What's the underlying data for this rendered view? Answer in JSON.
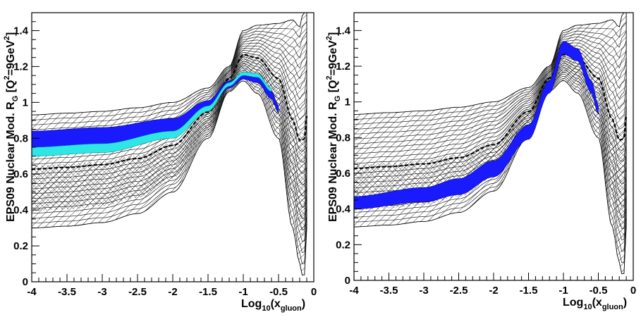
{
  "chart_data": [
    {
      "type": "line",
      "panel": "left",
      "title": "",
      "xlabel": "Log10(xgluon)",
      "xlabel_parts": {
        "pre": "Log",
        "sub1": "10",
        "mid": "(x",
        "sub2": "gluon",
        "post": ")"
      },
      "ylabel": "EPS09 Nuclear Mod. RG [Q2=9GeV2]",
      "ylabel_parts": {
        "pre": "EPS09 Nuclear Mod. R",
        "sub1": "G",
        "mid1": " [Q",
        "sup1": "2",
        "mid2": "=9GeV",
        "sup2": "2",
        "post": "]"
      },
      "xlim": [
        -4,
        0
      ],
      "ylim": [
        0,
        1.5
      ],
      "xticks": [
        "-4",
        "-3.5",
        "-3",
        "-2.5",
        "-2",
        "-1.5",
        "-1",
        "-0.5",
        "0"
      ],
      "yticks": [
        "0",
        "0.2",
        "0.4",
        "0.6",
        "0.8",
        "1",
        "1.2",
        "1.4"
      ],
      "bands": [
        {
          "name": "EPS09 error envelope (hatched)",
          "x": [
            -4,
            -3.5,
            -3,
            -2.5,
            -2,
            -1.5,
            -1.2,
            -1,
            -0.8,
            -0.5,
            -0.3,
            -0.2,
            -0.15,
            -0.12,
            -0.1
          ],
          "upper": [
            0.93,
            0.94,
            0.95,
            0.97,
            1.0,
            1.08,
            1.2,
            1.4,
            1.43,
            1.44,
            1.46,
            1.42,
            1.5,
            1.5,
            1.5
          ],
          "lower": [
            0.3,
            0.31,
            0.33,
            0.38,
            0.5,
            0.8,
            1.06,
            1.12,
            1.05,
            0.8,
            0.3,
            0.1,
            0.02,
            0.05,
            0.3
          ]
        },
        {
          "name": "Blue band",
          "x": [
            -4,
            -3,
            -2,
            -1.5,
            -1.2,
            -1,
            -0.8,
            -0.6,
            -0.5
          ],
          "upper": [
            0.84,
            0.86,
            0.91,
            1.01,
            1.12,
            1.16,
            1.14,
            1.06,
            0.98
          ],
          "lower": [
            0.74,
            0.76,
            0.82,
            0.96,
            1.08,
            1.13,
            1.11,
            1.02,
            0.94
          ]
        },
        {
          "name": "Cyan band",
          "x": [
            -4,
            -3,
            -2,
            -1.5,
            -1.2,
            -1,
            -0.8,
            -0.6
          ],
          "upper": [
            0.75,
            0.77,
            0.84,
            0.98,
            1.11,
            1.17,
            1.16,
            1.08
          ],
          "lower": [
            0.7,
            0.72,
            0.8,
            0.95,
            1.09,
            1.15,
            1.14,
            1.06
          ]
        }
      ]
    },
    {
      "type": "line",
      "panel": "right",
      "title": "",
      "xlabel": "Log10(xgluon)",
      "xlabel_parts": {
        "pre": "Log",
        "sub1": "10",
        "mid": "(x",
        "sub2": "gluon",
        "post": ")"
      },
      "ylabel": "EPS09 Nuclear Mod. RG [Q2=9GeV2]",
      "ylabel_parts": {
        "pre": "EPS09 Nuclear Mod. R",
        "sub1": "G",
        "mid1": " [Q",
        "sup1": "2",
        "mid2": "=9GeV",
        "sup2": "2",
        "post": "]"
      },
      "xlim": [
        -4,
        0
      ],
      "ylim": [
        0,
        1.5
      ],
      "xticks": [
        "-4",
        "-3.5",
        "-3",
        "-2.5",
        "-2",
        "-1.5",
        "-1",
        "-0.5",
        "0"
      ],
      "yticks": [
        "0",
        "0.2",
        "0.4",
        "0.6",
        "0.8",
        "1",
        "1.2",
        "1.4"
      ],
      "bands": [
        {
          "name": "EPS09 error envelope (hatched)",
          "x": [
            -4,
            -3.5,
            -3,
            -2.5,
            -2,
            -1.5,
            -1.2,
            -1,
            -0.8,
            -0.5,
            -0.3,
            -0.2,
            -0.15,
            -0.12,
            -0.1
          ],
          "upper": [
            0.93,
            0.94,
            0.95,
            0.97,
            1.0,
            1.08,
            1.2,
            1.4,
            1.43,
            1.44,
            1.46,
            1.42,
            1.5,
            1.5,
            1.5
          ],
          "lower": [
            0.3,
            0.31,
            0.33,
            0.38,
            0.5,
            0.8,
            1.06,
            1.12,
            1.05,
            0.8,
            0.3,
            0.1,
            0.02,
            0.05,
            0.3
          ]
        },
        {
          "name": "Blue band",
          "x": [
            -4,
            -3,
            -2.5,
            -2,
            -1.5,
            -1.2,
            -1,
            -0.8,
            -0.6,
            -0.5
          ],
          "upper": [
            0.47,
            0.52,
            0.57,
            0.67,
            0.87,
            1.12,
            1.34,
            1.3,
            1.12,
            0.98
          ],
          "lower": [
            0.4,
            0.44,
            0.48,
            0.58,
            0.79,
            1.05,
            1.27,
            1.23,
            1.05,
            0.93
          ]
        }
      ]
    }
  ]
}
